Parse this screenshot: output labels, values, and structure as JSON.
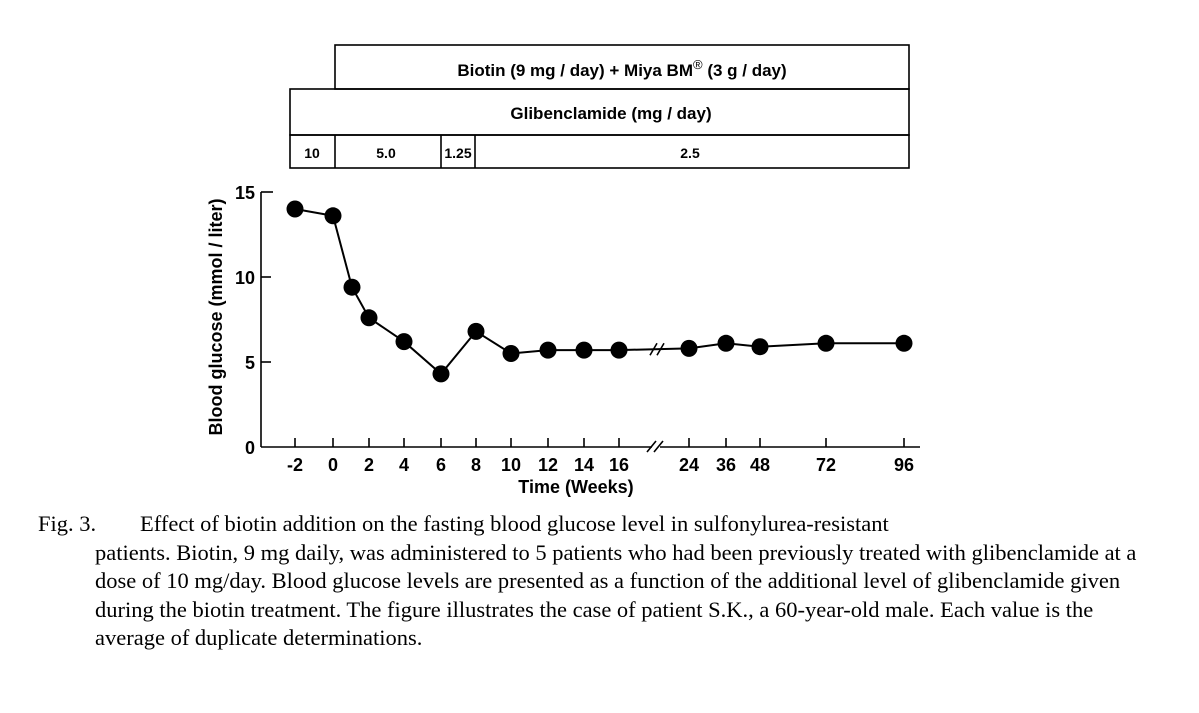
{
  "chart_data": {
    "type": "line",
    "ylabel": "Blood glucose  (mmol / liter)",
    "xlabel": "Time  (Weeks)",
    "ylim": [
      0,
      15
    ],
    "yticks": [
      "0",
      "5",
      "10",
      "15"
    ],
    "x_tick_labels": [
      "-2",
      "0",
      "2",
      "4",
      "6",
      "8",
      "10",
      "12",
      "14",
      "16",
      "24",
      "36",
      "48",
      "72",
      "96"
    ],
    "axis_break": "between 16 and 24 weeks",
    "points": [
      {
        "x": "-2",
        "y": 14.0
      },
      {
        "x": "0",
        "y": 13.6
      },
      {
        "x": "1",
        "y": 9.4
      },
      {
        "x": "2",
        "y": 7.6
      },
      {
        "x": "4",
        "y": 6.2
      },
      {
        "x": "6",
        "y": 4.3
      },
      {
        "x": "8",
        "y": 6.8
      },
      {
        "x": "10",
        "y": 5.5
      },
      {
        "x": "12",
        "y": 5.7
      },
      {
        "x": "14",
        "y": 5.7
      },
      {
        "x": "16",
        "y": 5.7
      },
      {
        "x": "24",
        "y": 5.8
      },
      {
        "x": "36",
        "y": 6.1
      },
      {
        "x": "48",
        "y": 5.9
      },
      {
        "x": "72",
        "y": 6.1
      },
      {
        "x": "96",
        "y": 6.1
      }
    ],
    "treatment_bars": {
      "biotin_label": "Biotin  (9 mg / day) + Miya BM",
      "biotin_mark": "®",
      "biotin_dose": " (3 g / day)",
      "glibenclamide_label": "Glibenclamide  (mg / day)",
      "doses": [
        {
          "label": "10",
          "from": "-2",
          "to": "-1"
        },
        {
          "label": "5.0",
          "from": "-1",
          "to": "6"
        },
        {
          "label": "1.25",
          "from": "6",
          "to": "8"
        },
        {
          "label": "2.5",
          "from": "8",
          "to": "96"
        }
      ]
    }
  },
  "caption": {
    "label": "Fig. 3.",
    "first_line": "Effect of biotin addition on the fasting blood glucose level in sulfonylurea-resistant",
    "rest": "patients. Biotin, 9 mg daily, was administered to 5 patients who had been previously treated with glibenclamide at a dose of 10 mg/day. Blood glucose levels are presented as a function of the additional level of glibenclamide given during the biotin treatment. The figure illustrates the case of patient S.K., a 60-year-old male. Each value is the average of duplicate determinations."
  }
}
